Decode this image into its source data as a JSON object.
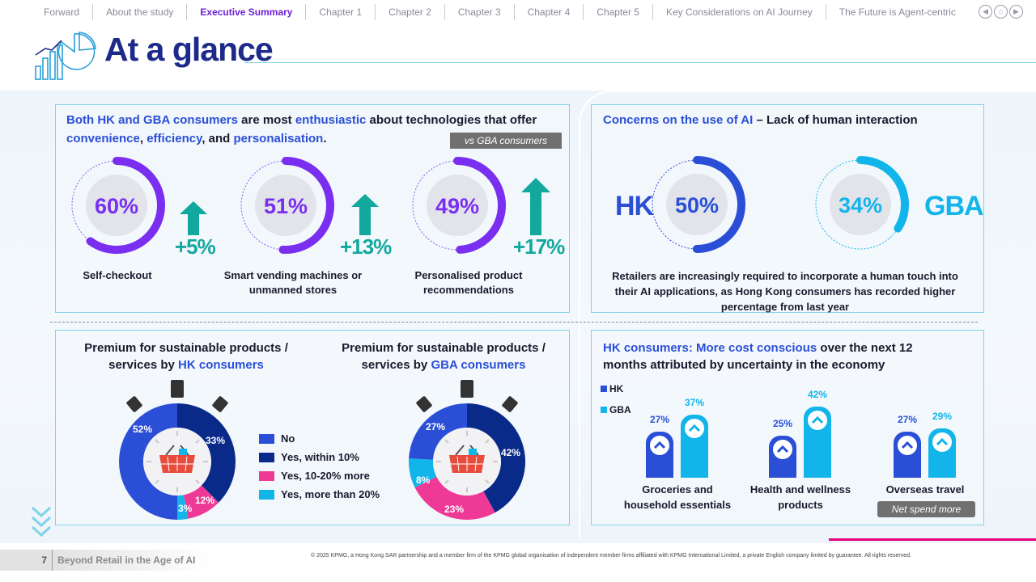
{
  "nav": {
    "items": [
      "Forward",
      "About the study",
      "Executive Summary",
      "Chapter 1",
      "Chapter 2",
      "Chapter 3",
      "Chapter 4",
      "Chapter 5",
      "Key Considerations on AI Journey",
      "The Future is Agent-centric"
    ],
    "active_index": 2
  },
  "header": {
    "title": "At a glance"
  },
  "panel1": {
    "heading_parts": [
      "Both HK and GBA consumers",
      " are most ",
      "enthusiastic",
      " about technologies that offer"
    ],
    "heading_line2": [
      "convenience",
      ", ",
      "efficiency",
      ", and ",
      "personalisation",
      "."
    ],
    "tag": "vs GBA consumers",
    "items": [
      {
        "value": "60%",
        "fraction": 0.6,
        "delta": "+5%",
        "caption_1": "Self-checkout",
        "caption_2": ""
      },
      {
        "value": "51%",
        "fraction": 0.51,
        "delta": "+13%",
        "caption_1": "Smart vending machines or",
        "caption_2": "unmanned stores"
      },
      {
        "value": "49%",
        "fraction": 0.49,
        "delta": "+17%",
        "caption_1": "Personalised product",
        "caption_2": "recommendations"
      }
    ]
  },
  "panel2": {
    "heading_hl": "Concerns on the use of AI",
    "heading_rest": " – Lack of human interaction",
    "hk_label": "HK",
    "hk_value": "50%",
    "hk_fraction": 0.5,
    "gba_label": "GBA",
    "gba_value": "34%",
    "gba_fraction": 0.34,
    "note_1": "Retailers are increasingly required to incorporate a human touch into",
    "note_2": "their AI applications, as Hong Kong consumers has recorded higher",
    "note_3": "percentage from last year"
  },
  "panel3": {
    "hk_title_1": "Premium for sustainable products /",
    "hk_title_2a": "services by ",
    "hk_title_2b": "HK consumers",
    "gba_title_1": "Premium for sustainable products /",
    "gba_title_2a": "services by ",
    "gba_title_2b": "GBA consumers",
    "legend": [
      {
        "label": "No",
        "color": "#2a4fd6"
      },
      {
        "label": "Yes, within 10%",
        "color": "#0a2a8a"
      },
      {
        "label": "Yes, 10-20% more",
        "color": "#ee3a96"
      },
      {
        "label": "Yes, more than 20%",
        "color": "#12b5ea"
      }
    ],
    "hk_values": {
      "no": "52%",
      "within10": "33%",
      "tento20": "12%",
      "more20": "3%"
    },
    "gba_values": {
      "no": "27%",
      "within10": "42%",
      "tento20": "23%",
      "more20": "8%"
    }
  },
  "panel4": {
    "heading_hl": "HK consumers: More cost conscious",
    "heading_rest": " over the next 12",
    "heading_line2": "months attributed by uncertainty in the economy",
    "legend_hk": "HK",
    "legend_gba": "GBA",
    "hk_color": "#2a4fd6",
    "gba_color": "#12b5ea",
    "groups": [
      {
        "hk": "27%",
        "gba": "37%",
        "hk_num": 27,
        "gba_num": 37,
        "label_1": "Groceries and",
        "label_2": "household essentials"
      },
      {
        "hk": "25%",
        "gba": "42%",
        "hk_num": 25,
        "gba_num": 42,
        "label_1": "Health and wellness",
        "label_2": "products"
      },
      {
        "hk": "27%",
        "gba": "29%",
        "hk_num": 27,
        "gba_num": 29,
        "label_1": "Overseas travel",
        "label_2": ""
      }
    ],
    "tag": "Net spend more"
  },
  "footer": {
    "page": "7",
    "title": "Beyond Retail in the Age of AI",
    "copyright": "© 2025 KPMG, a Hong Kong SAR partnership and a member firm of the KPMG global organisation of independent member firms affiliated with KPMG International Limited, a private English company limited by guarantee. All rights reserved."
  }
}
